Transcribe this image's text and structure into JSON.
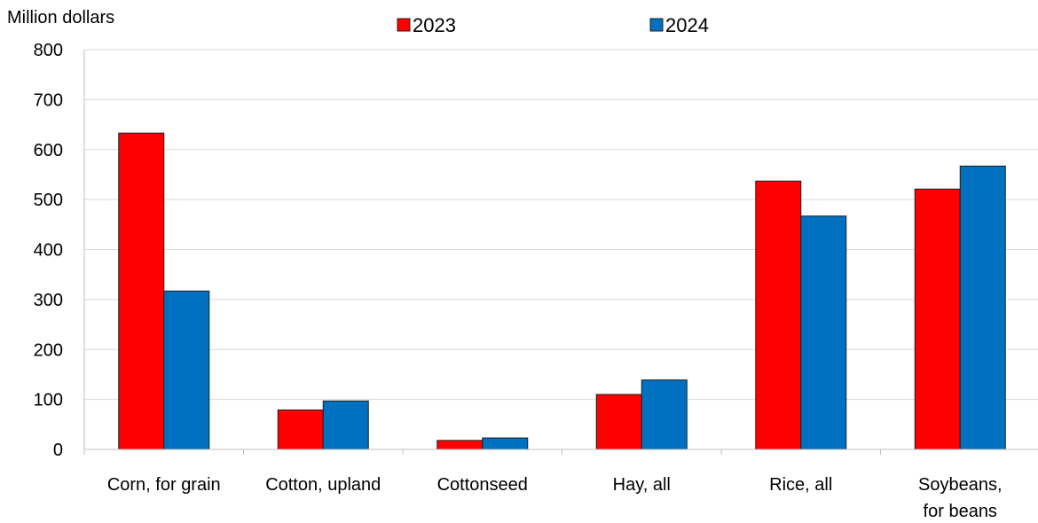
{
  "chart_data": {
    "type": "bar",
    "ylabel": "Million dollars",
    "ylim": [
      0,
      800
    ],
    "yticks": [
      0,
      100,
      200,
      300,
      400,
      500,
      600,
      700,
      800
    ],
    "categories": [
      "Corn, for grain",
      "Cotton, upland",
      "Cottonseed",
      "Hay, all",
      "Rice, all",
      "Soybeans, for beans"
    ],
    "series": [
      {
        "name": "2023",
        "color": "#ff0000",
        "values": [
          633,
          79,
          18,
          110,
          537,
          521
        ]
      },
      {
        "name": "2024",
        "color": "#0070c0",
        "values": [
          317,
          97,
          23,
          139,
          467,
          567
        ]
      }
    ],
    "legend_position": "top",
    "grid": true
  }
}
